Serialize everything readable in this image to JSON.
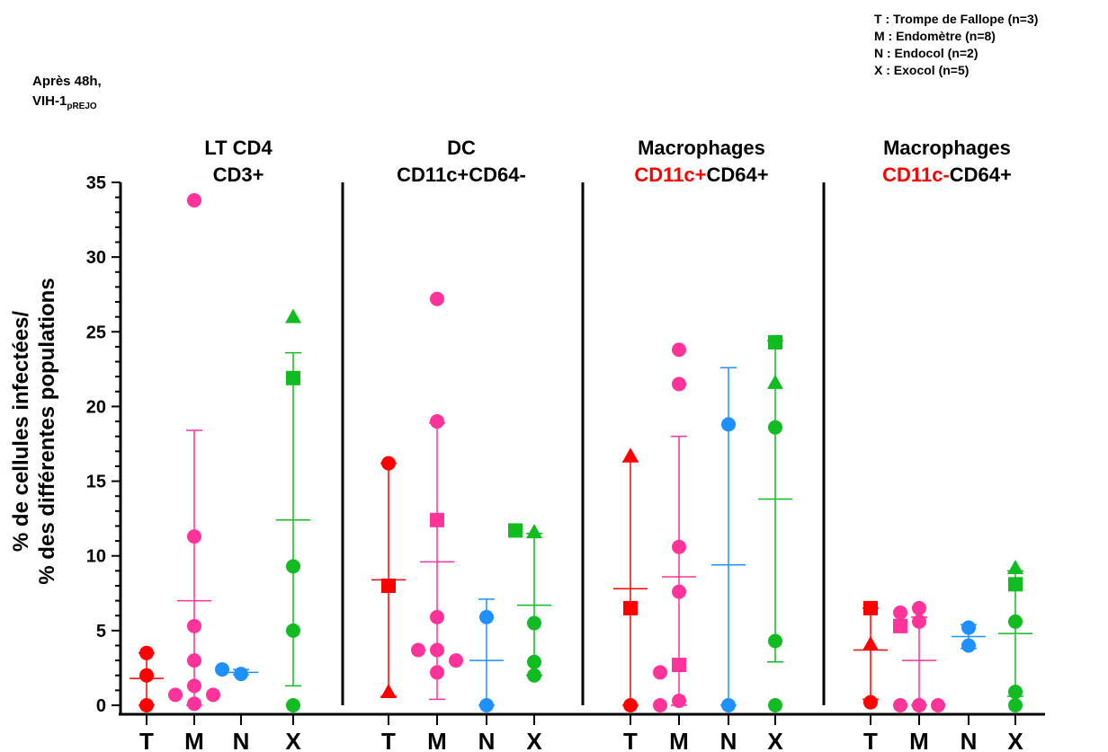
{
  "header": {
    "condition_line1": "Après 48h,",
    "condition_line2_main": "VIH-1",
    "condition_line2_sub": "pREJO"
  },
  "legend": [
    "T : Trompe de Fallope (n=3)",
    "M : Endomètre (n=8)",
    "N : Endocol (n=2)",
    "X : Exocol (n=5)"
  ],
  "ylabel_line1": "% de cellules infectées/",
  "ylabel_line2": "% des différentes populations",
  "colors": {
    "T": "#ff0000",
    "M": "#ff3399",
    "N": "#1e90ff",
    "X": "#11bb22",
    "red_text": "#ff0000"
  },
  "chart_data": {
    "type": "scatter",
    "ylim": [
      0,
      35
    ],
    "yticks": [
      "0",
      "5",
      "10",
      "15",
      "20",
      "25",
      "30",
      "35"
    ],
    "categories": [
      "T",
      "M",
      "N",
      "X"
    ],
    "panels": [
      {
        "title_line1": [
          {
            "text": "LT CD4",
            "red": false
          }
        ],
        "title_line2": [
          {
            "text": "CD3+",
            "red": false
          }
        ],
        "groups": [
          {
            "cat": "T",
            "mean": 1.8,
            "sd_low": 0,
            "sd_high": 3.5,
            "points": [
              {
                "y": 3.5,
                "shape": "circle"
              },
              {
                "y": 2.0,
                "shape": "circle"
              },
              {
                "y": 0.0,
                "shape": "circle"
              }
            ]
          },
          {
            "cat": "M",
            "mean": 7.0,
            "sd_low": 0,
            "sd_high": 18.4,
            "points": [
              {
                "y": 33.8,
                "shape": "circle"
              },
              {
                "y": 11.3,
                "shape": "circle"
              },
              {
                "y": 5.3,
                "shape": "circle"
              },
              {
                "y": 3.0,
                "shape": "circle"
              },
              {
                "y": 1.3,
                "shape": "circle"
              },
              {
                "y": 0.7,
                "shape": "circle"
              },
              {
                "y": 0.7,
                "shape": "circle"
              },
              {
                "y": 0.1,
                "shape": "circle"
              }
            ]
          },
          {
            "cat": "N",
            "mean": 2.2,
            "sd_low": 2.05,
            "sd_high": 2.4,
            "points": [
              {
                "y": 2.1,
                "shape": "circle"
              },
              {
                "y": 2.4,
                "shape": "circle"
              }
            ]
          },
          {
            "cat": "X",
            "mean": 12.4,
            "sd_low": 1.3,
            "sd_high": 23.6,
            "points": [
              {
                "y": 26.0,
                "shape": "triangle"
              },
              {
                "y": 21.9,
                "shape": "square"
              },
              {
                "y": 9.3,
                "shape": "circle"
              },
              {
                "y": 5.0,
                "shape": "circle"
              },
              {
                "y": 0.0,
                "shape": "circle"
              }
            ]
          }
        ]
      },
      {
        "title_line1": [
          {
            "text": "DC",
            "red": false
          }
        ],
        "title_line2": [
          {
            "text": "CD11c+CD64-",
            "red": false
          }
        ],
        "groups": [
          {
            "cat": "T",
            "mean": 8.4,
            "sd_low": 0.6,
            "sd_high": 16.2,
            "points": [
              {
                "y": 16.2,
                "shape": "circle"
              },
              {
                "y": 8.0,
                "shape": "square"
              },
              {
                "y": 0.9,
                "shape": "triangle"
              }
            ]
          },
          {
            "cat": "M",
            "mean": 9.6,
            "sd_low": 0.4,
            "sd_high": 18.9,
            "points": [
              {
                "y": 27.2,
                "shape": "circle"
              },
              {
                "y": 19.0,
                "shape": "circle"
              },
              {
                "y": 12.4,
                "shape": "square"
              },
              {
                "y": 5.9,
                "shape": "circle"
              },
              {
                "y": 3.7,
                "shape": "circle"
              },
              {
                "y": 3.7,
                "shape": "circle"
              },
              {
                "y": 3.0,
                "shape": "circle"
              },
              {
                "y": 2.2,
                "shape": "circle"
              }
            ]
          },
          {
            "cat": "N",
            "mean": 3.0,
            "sd_low": 0,
            "sd_high": 7.1,
            "points": [
              {
                "y": 5.9,
                "shape": "circle"
              },
              {
                "y": 0.0,
                "shape": "circle"
              }
            ]
          },
          {
            "cat": "X",
            "mean": 6.7,
            "sd_low": 2.0,
            "sd_high": 11.5,
            "points": [
              {
                "y": 11.6,
                "shape": "triangle"
              },
              {
                "y": 11.7,
                "shape": "square"
              },
              {
                "y": 5.5,
                "shape": "circle"
              },
              {
                "y": 2.9,
                "shape": "circle"
              },
              {
                "y": 2.0,
                "shape": "circle"
              }
            ]
          }
        ]
      },
      {
        "title_line1": [
          {
            "text": "Macrophages",
            "red": false
          }
        ],
        "title_line2": [
          {
            "text": "CD11c+",
            "red": true
          },
          {
            "text": "CD64+",
            "red": false
          }
        ],
        "groups": [
          {
            "cat": "T",
            "mean": 7.8,
            "sd_low": 0,
            "sd_high": 16.3,
            "points": [
              {
                "y": 16.7,
                "shape": "triangle"
              },
              {
                "y": 6.5,
                "shape": "square"
              },
              {
                "y": 0.0,
                "shape": "circle"
              }
            ]
          },
          {
            "cat": "M",
            "mean": 8.6,
            "sd_low": 0,
            "sd_high": 18.0,
            "points": [
              {
                "y": 23.8,
                "shape": "circle"
              },
              {
                "y": 21.5,
                "shape": "circle"
              },
              {
                "y": 10.6,
                "shape": "circle"
              },
              {
                "y": 7.6,
                "shape": "circle"
              },
              {
                "y": 2.7,
                "shape": "square"
              },
              {
                "y": 2.2,
                "shape": "circle"
              },
              {
                "y": 0.3,
                "shape": "circle"
              },
              {
                "y": 0.0,
                "shape": "circle"
              }
            ]
          },
          {
            "cat": "N",
            "mean": 9.4,
            "sd_low": 0,
            "sd_high": 22.6,
            "points": [
              {
                "y": 18.8,
                "shape": "circle"
              },
              {
                "y": 0.0,
                "shape": "circle"
              }
            ]
          },
          {
            "cat": "X",
            "mean": 13.8,
            "sd_low": 2.9,
            "sd_high": 24.4,
            "points": [
              {
                "y": 24.3,
                "shape": "square"
              },
              {
                "y": 21.6,
                "shape": "triangle"
              },
              {
                "y": 18.6,
                "shape": "circle"
              },
              {
                "y": 4.3,
                "shape": "circle"
              },
              {
                "y": 0.0,
                "shape": "circle"
              }
            ]
          }
        ]
      },
      {
        "title_line1": [
          {
            "text": "Macrophages",
            "red": false
          }
        ],
        "title_line2": [
          {
            "text": "CD11c-",
            "red": true
          },
          {
            "text": "CD64+",
            "red": false
          }
        ],
        "groups": [
          {
            "cat": "T",
            "mean": 3.7,
            "sd_low": 0.4,
            "sd_high": 6.5,
            "points": [
              {
                "y": 6.5,
                "shape": "square"
              },
              {
                "y": 4.1,
                "shape": "triangle"
              },
              {
                "y": 0.2,
                "shape": "circle"
              }
            ]
          },
          {
            "cat": "M",
            "mean": 3.0,
            "sd_low": 0,
            "sd_high": 5.9,
            "points": [
              {
                "y": 6.5,
                "shape": "circle"
              },
              {
                "y": 6.2,
                "shape": "circle"
              },
              {
                "y": 5.6,
                "shape": "circle"
              },
              {
                "y": 5.3,
                "shape": "square"
              },
              {
                "y": 0.0,
                "shape": "circle"
              },
              {
                "y": 0.0,
                "shape": "circle"
              },
              {
                "y": 0.0,
                "shape": "circle"
              },
              {
                "y": 0.0,
                "shape": "circle"
              }
            ]
          },
          {
            "cat": "N",
            "mean": 4.6,
            "sd_low": 3.8,
            "sd_high": 5.4,
            "points": [
              {
                "y": 5.2,
                "shape": "circle"
              },
              {
                "y": 4.0,
                "shape": "circle"
              }
            ]
          },
          {
            "cat": "X",
            "mean": 4.8,
            "sd_low": 0.6,
            "sd_high": 9.0,
            "points": [
              {
                "y": 9.2,
                "shape": "triangle"
              },
              {
                "y": 8.1,
                "shape": "square"
              },
              {
                "y": 5.6,
                "shape": "circle"
              },
              {
                "y": 0.9,
                "shape": "circle"
              },
              {
                "y": 0.0,
                "shape": "circle"
              }
            ]
          }
        ]
      }
    ]
  }
}
